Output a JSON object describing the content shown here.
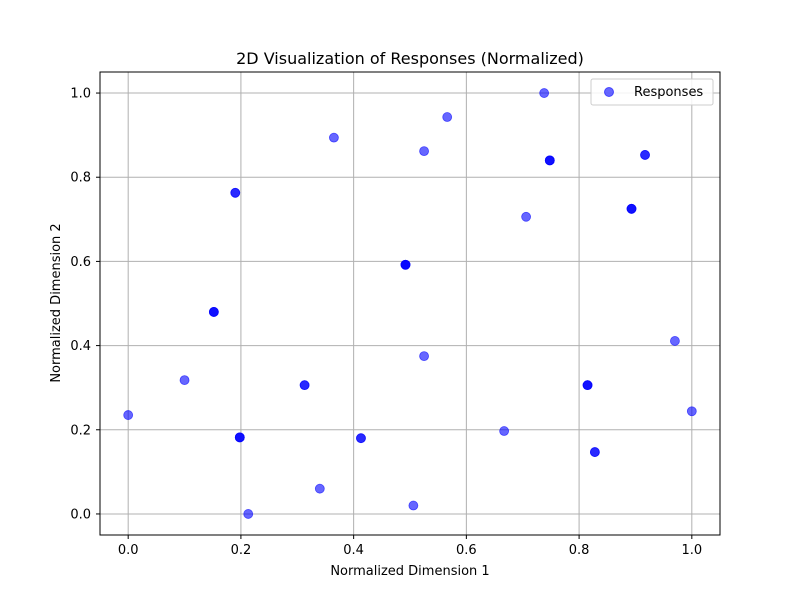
{
  "chart_data": {
    "type": "scatter",
    "title": "2D Visualization of Responses (Normalized)",
    "xlabel": "Normalized Dimension 1",
    "ylabel": "Normalized Dimension 2",
    "xlim": [
      -0.05,
      1.05
    ],
    "ylim": [
      -0.05,
      1.05
    ],
    "xticks": [
      "0.0",
      "0.2",
      "0.4",
      "0.6",
      "0.8",
      "1.0"
    ],
    "yticks": [
      "0.0",
      "0.2",
      "0.4",
      "0.6",
      "0.8",
      "1.0"
    ],
    "xtick_values": [
      0.0,
      0.2,
      0.4,
      0.6,
      0.8,
      1.0
    ],
    "ytick_values": [
      0.0,
      0.2,
      0.4,
      0.6,
      0.8,
      1.0
    ],
    "grid": true,
    "legend_position": "top-right",
    "series": [
      {
        "name": "Responses",
        "color": "#0000ff",
        "opacity": 0.6,
        "points": [
          {
            "x": 0.0,
            "y": 0.235
          },
          {
            "x": 0.1,
            "y": 0.318
          },
          {
            "x": 0.152,
            "y": 0.48,
            "count": 3
          },
          {
            "x": 0.19,
            "y": 0.763,
            "count": 2
          },
          {
            "x": 0.198,
            "y": 0.182,
            "count": 3
          },
          {
            "x": 0.213,
            "y": 0.0
          },
          {
            "x": 0.313,
            "y": 0.306,
            "count": 2
          },
          {
            "x": 0.34,
            "y": 0.06
          },
          {
            "x": 0.365,
            "y": 0.894
          },
          {
            "x": 0.413,
            "y": 0.18,
            "count": 2
          },
          {
            "x": 0.492,
            "y": 0.592,
            "count": 4
          },
          {
            "x": 0.506,
            "y": 0.02
          },
          {
            "x": 0.525,
            "y": 0.375
          },
          {
            "x": 0.525,
            "y": 0.862
          },
          {
            "x": 0.566,
            "y": 0.943
          },
          {
            "x": 0.667,
            "y": 0.197
          },
          {
            "x": 0.706,
            "y": 0.706
          },
          {
            "x": 0.738,
            "y": 1.0
          },
          {
            "x": 0.748,
            "y": 0.84,
            "count": 3
          },
          {
            "x": 0.815,
            "y": 0.306,
            "count": 3
          },
          {
            "x": 0.828,
            "y": 0.147,
            "count": 2
          },
          {
            "x": 0.893,
            "y": 0.725,
            "count": 3
          },
          {
            "x": 0.917,
            "y": 0.853,
            "count": 2
          },
          {
            "x": 0.97,
            "y": 0.411
          },
          {
            "x": 1.0,
            "y": 0.244
          }
        ]
      }
    ]
  }
}
